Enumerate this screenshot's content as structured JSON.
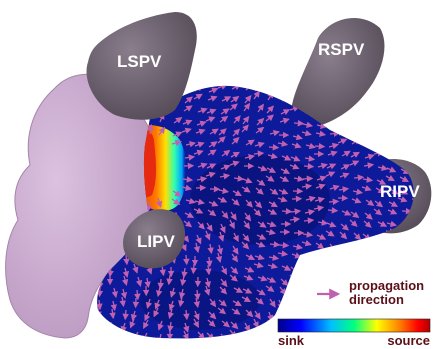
{
  "veins": {
    "lspv": "LSPV",
    "rspv": "RSPV",
    "lipv": "LIPV",
    "ripv": "RIPV"
  },
  "legend": {
    "arrow_line1": "propagation",
    "arrow_line2": "direction",
    "arrow_color": "#c060b0"
  },
  "colorbar": {
    "low_label": "sink",
    "high_label": "source",
    "colors": [
      "#00008b",
      "#0000ff",
      "#00c0ff",
      "#00ff80",
      "#ffff00",
      "#ff8000",
      "#ff0000",
      "#b00000"
    ]
  },
  "colors": {
    "atrium": "#c9a8cf",
    "veins": "#6f6270",
    "map_background": "#0d1a9a",
    "source_core": "#e62a10"
  }
}
